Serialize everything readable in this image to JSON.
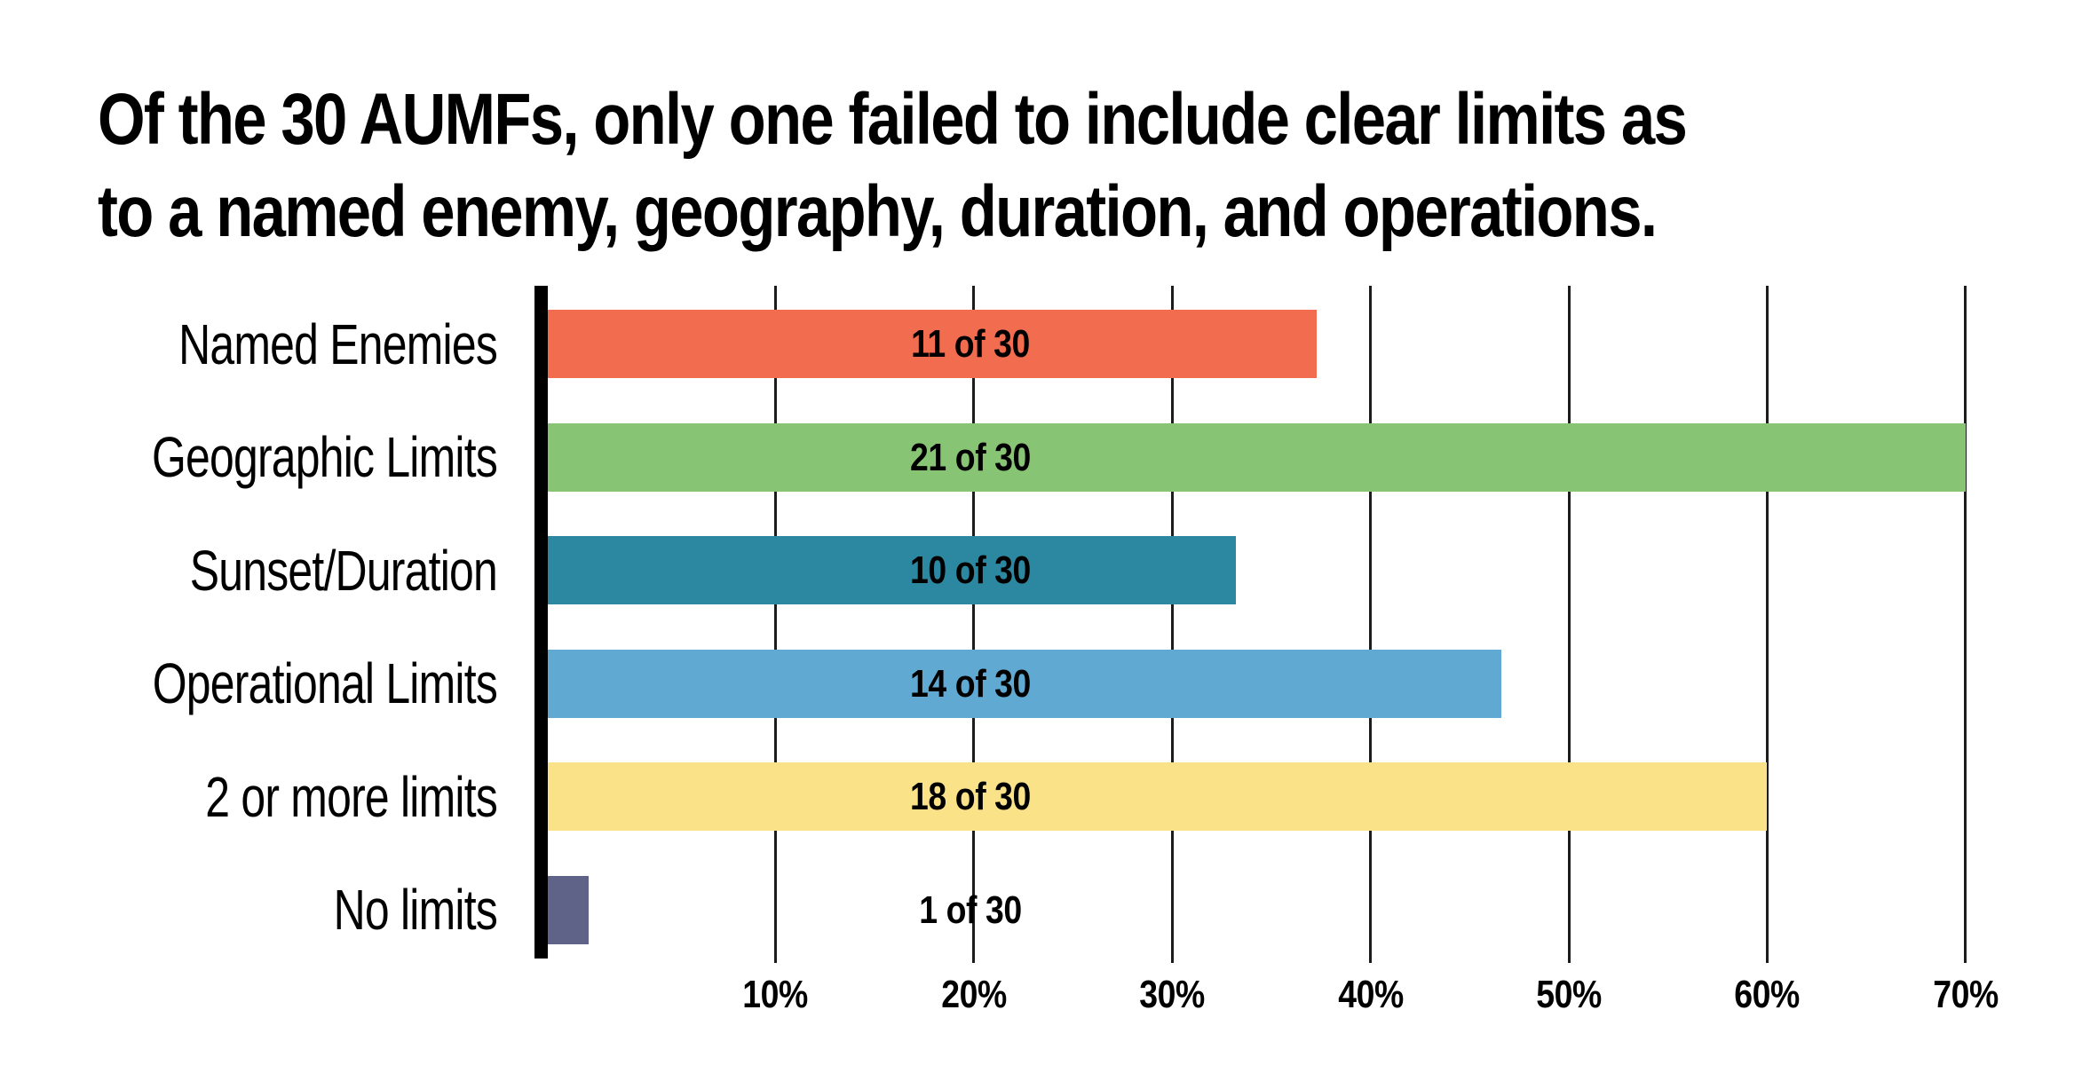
{
  "page": {
    "background": "#FFFFFF"
  },
  "title": {
    "lines": [
      "Of the 30 AUMFs, only one failed to include clear limits as",
      "to a named enemy, geography, duration, and operations."
    ],
    "color": "#000000"
  },
  "chart_data": {
    "type": "bar",
    "orientation": "horizontal",
    "title": "Of the 30 AUMFs, only one failed to include clear limits as to a named enemy, geography, duration, and operations.",
    "categories": [
      "Named Enemies",
      "Geographic Limits",
      "Sunset/Duration",
      "Operational Limits",
      "2 or more limits",
      "No limits"
    ],
    "values": [
      11,
      21,
      10,
      14,
      18,
      1
    ],
    "denominator": 30,
    "bar_labels": [
      "11 of 30",
      "21 of 30",
      "10 of 30",
      "14 of 30",
      "18 of 30",
      "1 of 30"
    ],
    "percent_values": [
      36.7,
      70.0,
      33.3,
      46.7,
      60.0,
      3.3
    ],
    "colors": [
      "#F26C50",
      "#87C575",
      "#2C87A0",
      "#5FA9D3",
      "#FAE289",
      "#5F6387"
    ],
    "x_axis": {
      "tick_labels": [
        "10%",
        "20%",
        "30%",
        "40%",
        "50%",
        "60%",
        "70%"
      ],
      "min": "0%",
      "max": "70%"
    },
    "grid": "vertical gridlines on",
    "legend": "none",
    "axis_color": "#000000",
    "gridline_color": "#1C1C1C",
    "value_label_color": "#000000",
    "background": "#FFFFFF"
  }
}
